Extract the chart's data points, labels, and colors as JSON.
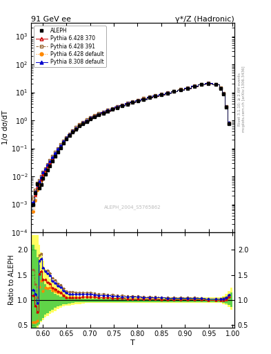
{
  "title_left": "91 GeV ee",
  "title_right": "γ*/Z (Hadronic)",
  "xlabel": "T",
  "ylabel_main": "1/σ dσ/dT",
  "ylabel_ratio": "Ratio to ALEPH",
  "right_label_top": "Rivet 3.1.10; ≥ 2.6M events",
  "right_label_bottom": "mcplots.cern.ch [arXiv:1306.3436]",
  "watermark": "ALEPH_2004_S5765862",
  "xlim": [
    0.576,
    1.004
  ],
  "ylim_main": [
    0.0001,
    3000.0
  ],
  "ylim_ratio": [
    0.45,
    2.35
  ],
  "ratio_yticks": [
    0.5,
    1.0,
    1.5,
    2.0
  ],
  "color_aleph": "#000000",
  "color_p6370": "#cc0000",
  "color_p6391": "#996633",
  "color_p6def": "#ff8800",
  "color_p8def": "#0000cc",
  "band_yellow": "#ffff44",
  "band_green": "#44cc44",
  "T_edges": [
    0.576,
    0.583,
    0.587,
    0.591,
    0.595,
    0.599,
    0.603,
    0.608,
    0.613,
    0.618,
    0.623,
    0.629,
    0.635,
    0.641,
    0.647,
    0.653,
    0.66,
    0.667,
    0.674,
    0.681,
    0.689,
    0.697,
    0.705,
    0.714,
    0.723,
    0.732,
    0.742,
    0.752,
    0.762,
    0.773,
    0.784,
    0.795,
    0.807,
    0.819,
    0.831,
    0.844,
    0.857,
    0.87,
    0.884,
    0.898,
    0.912,
    0.927,
    0.942,
    0.957,
    0.972,
    0.978,
    0.984,
    0.99,
    0.995,
    1.0
  ],
  "y_aleph": [
    0.001,
    0.0025,
    0.0055,
    0.0038,
    0.0052,
    0.0085,
    0.012,
    0.017,
    0.024,
    0.036,
    0.052,
    0.075,
    0.105,
    0.15,
    0.21,
    0.285,
    0.375,
    0.49,
    0.62,
    0.76,
    0.91,
    1.1,
    1.3,
    1.55,
    1.8,
    2.1,
    2.45,
    2.85,
    3.3,
    3.8,
    4.35,
    4.95,
    5.65,
    6.4,
    7.3,
    8.3,
    9.4,
    10.7,
    12.1,
    13.8,
    16.2,
    18.8,
    20.8,
    18.8,
    13.8,
    8.8,
    2.9,
    0.75,
    0.0
  ],
  "y_p6370": [
    0.0011,
    0.0022,
    0.0042,
    0.0058,
    0.0082,
    0.012,
    0.017,
    0.023,
    0.032,
    0.045,
    0.063,
    0.088,
    0.12,
    0.163,
    0.222,
    0.298,
    0.395,
    0.518,
    0.656,
    0.808,
    0.965,
    1.17,
    1.38,
    1.62,
    1.89,
    2.2,
    2.56,
    2.96,
    3.41,
    3.91,
    4.47,
    5.1,
    5.78,
    6.56,
    7.45,
    8.44,
    9.56,
    10.8,
    12.3,
    14.0,
    16.4,
    18.9,
    20.8,
    18.8,
    13.8,
    8.8,
    2.95,
    0.8,
    0.0
  ],
  "y_p6391": [
    0.0016,
    0.0033,
    0.0058,
    0.0072,
    0.01,
    0.014,
    0.019,
    0.027,
    0.037,
    0.052,
    0.073,
    0.1,
    0.137,
    0.185,
    0.248,
    0.33,
    0.435,
    0.565,
    0.71,
    0.87,
    1.04,
    1.26,
    1.48,
    1.73,
    2.01,
    2.33,
    2.71,
    3.12,
    3.59,
    4.11,
    4.68,
    5.32,
    6.03,
    6.83,
    7.75,
    8.77,
    9.92,
    11.2,
    12.7,
    14.5,
    17.0,
    19.5,
    21.4,
    19.3,
    14.2,
    9.1,
    3.05,
    0.82,
    0.0
  ],
  "y_p6def": [
    0.00055,
    0.0014,
    0.0032,
    0.0048,
    0.0072,
    0.01,
    0.015,
    0.021,
    0.03,
    0.043,
    0.061,
    0.086,
    0.12,
    0.163,
    0.222,
    0.298,
    0.395,
    0.518,
    0.656,
    0.808,
    0.965,
    1.17,
    1.38,
    1.62,
    1.89,
    2.2,
    2.56,
    2.96,
    3.41,
    3.91,
    4.47,
    5.1,
    5.78,
    6.56,
    7.45,
    8.44,
    9.56,
    10.8,
    12.3,
    14.0,
    16.4,
    18.9,
    20.8,
    18.8,
    13.8,
    8.8,
    2.95,
    0.8,
    0.0
  ],
  "y_p8def": [
    0.0012,
    0.0028,
    0.0052,
    0.0068,
    0.0095,
    0.014,
    0.019,
    0.026,
    0.036,
    0.05,
    0.07,
    0.096,
    0.132,
    0.178,
    0.24,
    0.32,
    0.422,
    0.55,
    0.692,
    0.85,
    1.015,
    1.23,
    1.44,
    1.69,
    1.97,
    2.29,
    2.66,
    3.07,
    3.54,
    4.05,
    4.62,
    5.27,
    5.97,
    6.77,
    7.67,
    8.68,
    9.82,
    11.1,
    12.6,
    14.4,
    16.9,
    19.4,
    21.3,
    19.2,
    14.1,
    9.05,
    3.05,
    0.83,
    0.0
  ],
  "yband_yellow_up": [
    2.3,
    2.3,
    2.3,
    2.1,
    1.95,
    1.78,
    1.62,
    1.52,
    1.42,
    1.38,
    1.32,
    1.28,
    1.22,
    1.18,
    1.14,
    1.12,
    1.1,
    1.08,
    1.07,
    1.06,
    1.055,
    1.05,
    1.05,
    1.05,
    1.05,
    1.05,
    1.05,
    1.05,
    1.05,
    1.05,
    1.05,
    1.05,
    1.05,
    1.05,
    1.05,
    1.05,
    1.05,
    1.05,
    1.05,
    1.05,
    1.05,
    1.05,
    1.05,
    1.05,
    1.05,
    1.08,
    1.12,
    1.18,
    1.25,
    1.3
  ],
  "yband_yellow_lo": [
    0.45,
    0.45,
    0.45,
    0.5,
    0.55,
    0.6,
    0.65,
    0.68,
    0.72,
    0.75,
    0.78,
    0.82,
    0.85,
    0.87,
    0.88,
    0.89,
    0.9,
    0.91,
    0.92,
    0.93,
    0.935,
    0.94,
    0.94,
    0.94,
    0.94,
    0.94,
    0.94,
    0.94,
    0.94,
    0.94,
    0.94,
    0.94,
    0.94,
    0.94,
    0.94,
    0.94,
    0.94,
    0.94,
    0.94,
    0.94,
    0.94,
    0.94,
    0.94,
    0.94,
    0.94,
    0.92,
    0.9,
    0.86,
    0.8,
    0.75
  ],
  "yband_green_up": [
    2.1,
    2.0,
    1.85,
    1.7,
    1.55,
    1.42,
    1.32,
    1.25,
    1.2,
    1.16,
    1.12,
    1.09,
    1.07,
    1.06,
    1.05,
    1.04,
    1.04,
    1.03,
    1.03,
    1.03,
    1.03,
    1.03,
    1.03,
    1.03,
    1.03,
    1.03,
    1.03,
    1.03,
    1.03,
    1.03,
    1.03,
    1.03,
    1.03,
    1.03,
    1.03,
    1.03,
    1.03,
    1.03,
    1.03,
    1.03,
    1.03,
    1.03,
    1.03,
    1.03,
    1.03,
    1.05,
    1.07,
    1.1,
    1.15,
    1.18
  ],
  "yband_green_lo": [
    0.45,
    0.45,
    0.48,
    0.52,
    0.58,
    0.64,
    0.7,
    0.74,
    0.78,
    0.81,
    0.84,
    0.87,
    0.89,
    0.91,
    0.92,
    0.93,
    0.94,
    0.95,
    0.95,
    0.96,
    0.96,
    0.96,
    0.96,
    0.96,
    0.96,
    0.96,
    0.96,
    0.96,
    0.96,
    0.96,
    0.96,
    0.96,
    0.96,
    0.96,
    0.96,
    0.96,
    0.96,
    0.96,
    0.96,
    0.96,
    0.96,
    0.96,
    0.96,
    0.96,
    0.96,
    0.94,
    0.93,
    0.9,
    0.86,
    0.82
  ]
}
